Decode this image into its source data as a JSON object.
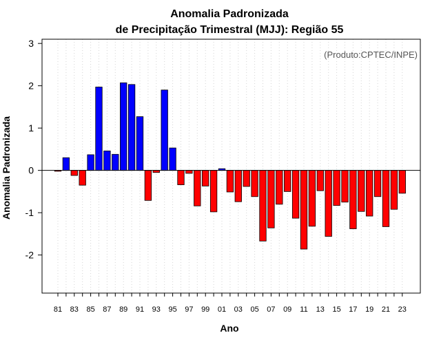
{
  "chart_data": {
    "type": "bar",
    "title": "Anomalia Padronizada",
    "subtitle": "de Precipitação Trimestral (MJJ): Região 55",
    "xlabel": "Ano",
    "ylabel": "Anomalia Padronizada",
    "annotation": "(Produto:CPTEC/INPE)",
    "ylim": [
      -2.9,
      3.1
    ],
    "yticks": [
      -2,
      -1,
      0,
      1,
      2,
      3
    ],
    "grid": "vertical-dotted",
    "positive_color": "#0000ff",
    "negative_color": "#ff0000",
    "categories": [
      "81",
      "82",
      "83",
      "84",
      "85",
      "86",
      "87",
      "88",
      "89",
      "90",
      "91",
      "92",
      "93",
      "94",
      "95",
      "96",
      "97",
      "98",
      "99",
      "00",
      "01",
      "02",
      "03",
      "04",
      "05",
      "06",
      "07",
      "08",
      "09",
      "10",
      "11",
      "12",
      "13",
      "14",
      "15",
      "16",
      "17",
      "18",
      "19",
      "20",
      "21",
      "22",
      "23"
    ],
    "tick_labels": [
      "81",
      "83",
      "85",
      "87",
      "89",
      "91",
      "93",
      "95",
      "97",
      "99",
      "01",
      "03",
      "05",
      "07",
      "09",
      "11",
      "13",
      "15",
      "17",
      "19",
      "21",
      "23"
    ],
    "values": [
      -0.02,
      0.3,
      -0.12,
      -0.35,
      0.37,
      1.97,
      0.46,
      0.38,
      2.07,
      2.03,
      1.27,
      -0.71,
      -0.05,
      1.9,
      0.53,
      -0.34,
      -0.07,
      -0.84,
      -0.37,
      -0.98,
      0.04,
      -0.51,
      -0.74,
      -0.38,
      -0.62,
      -1.67,
      -1.36,
      -0.8,
      -0.5,
      -1.13,
      -1.86,
      -1.32,
      -0.48,
      -1.56,
      -0.83,
      -0.75,
      -1.38,
      -0.97,
      -1.08,
      -0.62,
      -1.33,
      -0.92,
      -0.54
    ]
  }
}
